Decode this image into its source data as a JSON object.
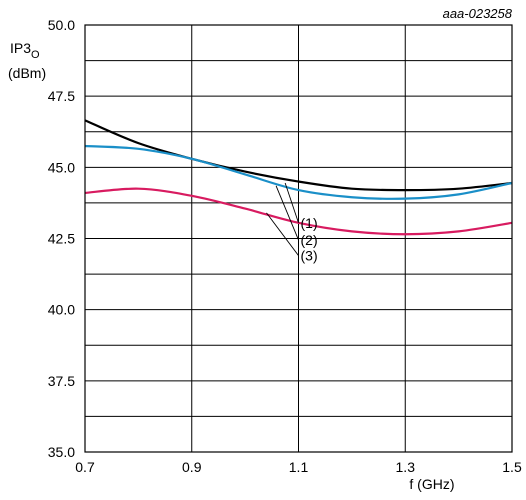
{
  "chart_data": {
    "type": "line",
    "figure_id": "aaa-023258",
    "ylabel_main": "IP3",
    "ylabel_sub": "O",
    "ylabel_unit": "(dBm)",
    "xlabel": "f (GHz)",
    "xlim": [
      0.7,
      1.5
    ],
    "ylim": [
      35.0,
      50.0
    ],
    "x_ticks": [
      0.7,
      0.9,
      1.1,
      1.3,
      1.5
    ],
    "x_tick_labels": [
      "0.7",
      "0.9",
      "1.1",
      "1.3",
      "1.5"
    ],
    "y_ticks": [
      35.0,
      37.5,
      40.0,
      42.5,
      45.0,
      47.5,
      50.0
    ],
    "y_tick_labels": [
      "35.0",
      "37.5",
      "40.0",
      "42.5",
      "45.0",
      "47.5",
      "50.0"
    ],
    "grid_y": [
      35.0,
      36.25,
      37.5,
      38.75,
      40.0,
      41.25,
      42.5,
      43.75,
      45.0,
      46.25,
      47.5,
      48.75,
      50.0
    ],
    "grid_x": [
      0.7,
      0.9,
      1.1,
      1.3,
      1.5
    ],
    "series": [
      {
        "label": "(1)",
        "color": "#000000",
        "x": [
          0.7,
          0.8,
          0.9,
          1.0,
          1.1,
          1.2,
          1.3,
          1.4,
          1.5
        ],
        "y": [
          46.65,
          45.85,
          45.3,
          44.85,
          44.5,
          44.25,
          44.2,
          44.25,
          44.45
        ]
      },
      {
        "label": "(2)",
        "color": "#1a8fc8",
        "x": [
          0.7,
          0.8,
          0.9,
          1.0,
          1.1,
          1.2,
          1.3,
          1.4,
          1.5
        ],
        "y": [
          45.75,
          45.65,
          45.3,
          44.75,
          44.2,
          43.95,
          43.9,
          44.05,
          44.45
        ]
      },
      {
        "label": "(3)",
        "color": "#d81b60",
        "x": [
          0.7,
          0.8,
          0.9,
          1.0,
          1.1,
          1.2,
          1.3,
          1.4,
          1.5
        ],
        "y": [
          44.1,
          44.25,
          44.0,
          43.55,
          43.05,
          42.75,
          42.65,
          42.75,
          43.05
        ]
      }
    ],
    "annotations": [
      {
        "text": "(1)",
        "color": "#000000",
        "from_x": 1.075,
        "from_y": 44.45,
        "to_x": 1.1,
        "to_y": 43.05
      },
      {
        "text": "(2)",
        "color": "#1a8fc8",
        "from_x": 1.058,
        "from_y": 44.35,
        "to_x": 1.1,
        "to_y": 42.45
      },
      {
        "text": "(3)",
        "color": "#d81b60",
        "from_x": 1.04,
        "from_y": 43.4,
        "to_x": 1.1,
        "to_y": 41.9
      }
    ]
  }
}
